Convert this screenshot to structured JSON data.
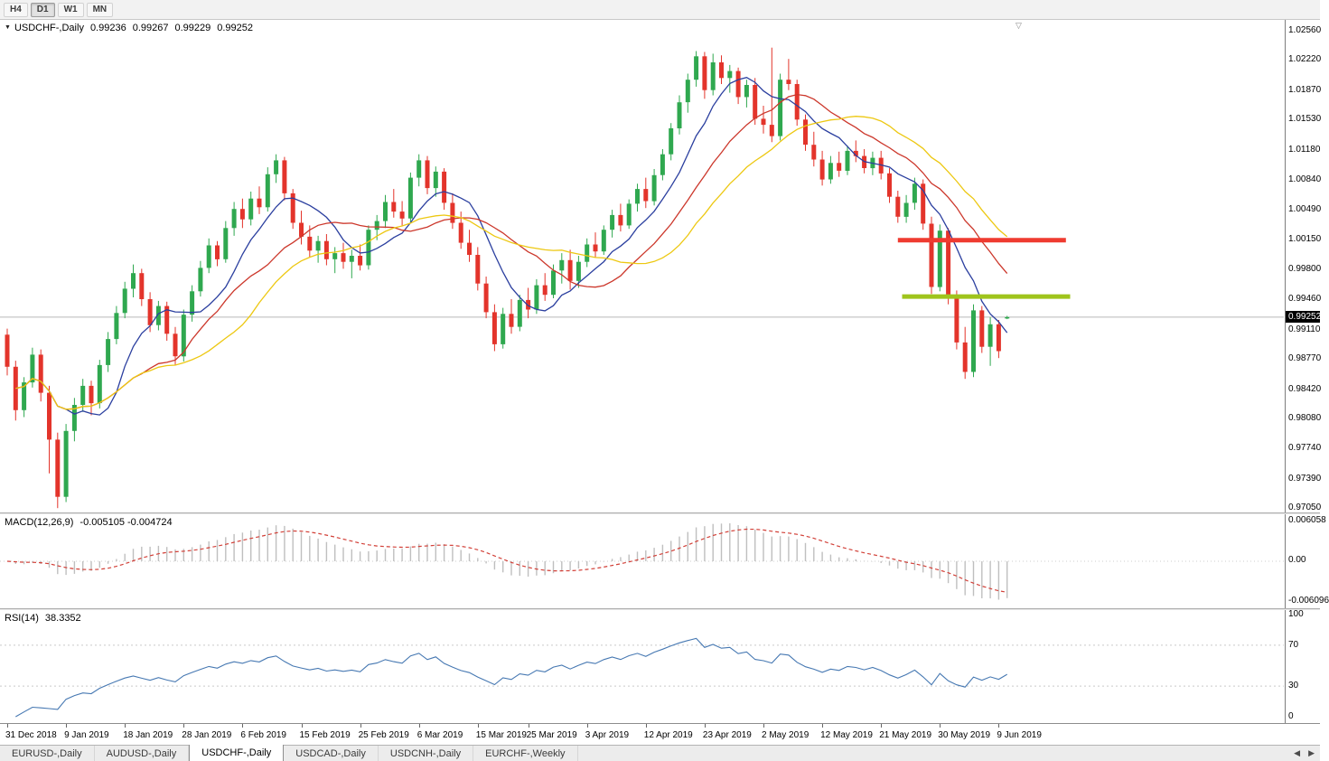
{
  "toolbar": {
    "timeframes": [
      "H4",
      "D1",
      "W1",
      "MN"
    ],
    "active": "D1"
  },
  "icons": {
    "dropdown": "▼",
    "shift_marker": "▽",
    "scroll_left": "◀",
    "scroll_right": "▶"
  },
  "colors": {
    "bull": "#2fa84f",
    "bear": "#e3342b",
    "macd_hist": "#bfbfbf",
    "macd_signal": "#d24038",
    "rsi": "#4678b2"
  },
  "chart": {
    "title": {
      "symbol": "USDCHF-,Daily",
      "open": "0.99236",
      "high": "0.99267",
      "low": "0.99229",
      "close": "0.99252"
    },
    "price_axis": {
      "ticks": [
        "1.02560",
        "1.02220",
        "1.01870",
        "1.01530",
        "1.01180",
        "1.00840",
        "1.00490",
        "1.00150",
        "0.99800",
        "0.99460",
        "0.99110",
        "0.98770",
        "0.98420",
        "0.98080",
        "0.97740",
        "0.97390",
        "0.97050"
      ],
      "current_price": "0.99252"
    }
  },
  "macd_panel": {
    "name": "MACD(12,26,9)",
    "values": "-0.005105 -0.004724",
    "axis_labels": [
      "0.006058",
      "0.00",
      "-0.006096"
    ]
  },
  "rsi_panel": {
    "name": "RSI(14)",
    "value": "38.3352",
    "axis_labels": [
      "100",
      "70",
      "30",
      "0"
    ],
    "levels": [
      70,
      30
    ]
  },
  "tabs": {
    "items": [
      {
        "label": "EURUSD-,Daily",
        "active": false
      },
      {
        "label": "AUDUSD-,Daily",
        "active": false
      },
      {
        "label": "USDCHF-,Daily",
        "active": true
      },
      {
        "label": "USDCAD-,Daily",
        "active": false
      },
      {
        "label": "USDCNH-,Daily",
        "active": false
      },
      {
        "label": "EURCHF-,Weekly",
        "active": false
      }
    ]
  },
  "chart_data": {
    "type": "candlestick",
    "symbol": "USDCHF",
    "timeframe": "Daily",
    "y_range": [
      0.97,
      1.0268
    ],
    "ohlc": [
      [
        0.9905,
        0.9912,
        0.9858,
        0.9868
      ],
      [
        0.9868,
        0.9875,
        0.9806,
        0.9818
      ],
      [
        0.9818,
        0.9856,
        0.981,
        0.985
      ],
      [
        0.985,
        0.989,
        0.9844,
        0.9882
      ],
      [
        0.9882,
        0.9888,
        0.9828,
        0.9838
      ],
      [
        0.9838,
        0.9846,
        0.9745,
        0.9784
      ],
      [
        0.9784,
        0.9792,
        0.9705,
        0.9718
      ],
      [
        0.9718,
        0.9802,
        0.9712,
        0.9794
      ],
      [
        0.9794,
        0.9832,
        0.9782,
        0.9824
      ],
      [
        0.9824,
        0.9854,
        0.9816,
        0.9846
      ],
      [
        0.9846,
        0.9852,
        0.9812,
        0.9826
      ],
      [
        0.9826,
        0.9876,
        0.982,
        0.987
      ],
      [
        0.987,
        0.9908,
        0.9862,
        0.99
      ],
      [
        0.99,
        0.9938,
        0.9894,
        0.993
      ],
      [
        0.993,
        0.9966,
        0.9924,
        0.9958
      ],
      [
        0.9958,
        0.9986,
        0.9948,
        0.9976
      ],
      [
        0.9976,
        0.9981,
        0.9938,
        0.9946
      ],
      [
        0.9946,
        0.9954,
        0.9908,
        0.9916
      ],
      [
        0.9916,
        0.9944,
        0.991,
        0.9938
      ],
      [
        0.9938,
        0.9943,
        0.9898,
        0.9906
      ],
      [
        0.9906,
        0.9914,
        0.987,
        0.988
      ],
      [
        0.988,
        0.9934,
        0.9874,
        0.9928
      ],
      [
        0.9928,
        0.9962,
        0.992,
        0.9955
      ],
      [
        0.9955,
        0.999,
        0.9949,
        0.9982
      ],
      [
        0.9982,
        1.0016,
        0.9976,
        1.0008
      ],
      [
        1.0008,
        1.0013,
        0.9984,
        0.9992
      ],
      [
        0.9992,
        1.0036,
        0.9988,
        1.0028
      ],
      [
        1.0028,
        1.0058,
        1.0019,
        1.005
      ],
      [
        1.005,
        1.0062,
        1.0028,
        1.0038
      ],
      [
        1.0038,
        1.007,
        1.0031,
        1.0062
      ],
      [
        1.0062,
        1.0076,
        1.0044,
        1.0052
      ],
      [
        1.0052,
        1.0098,
        1.0047,
        1.009
      ],
      [
        1.009,
        1.0113,
        1.008,
        1.0106
      ],
      [
        1.0106,
        1.011,
        1.006,
        1.0068
      ],
      [
        1.0068,
        1.0073,
        1.0027,
        1.0034
      ],
      [
        1.0034,
        1.0048,
        1.0009,
        1.0018
      ],
      [
        1.0018,
        1.0031,
        0.9994,
        1.0002
      ],
      [
        1.0002,
        1.0019,
        0.9988,
        1.0013
      ],
      [
        1.0013,
        1.0021,
        0.9985,
        0.9992
      ],
      [
        0.9992,
        1.0006,
        0.9976,
        0.9999
      ],
      [
        0.9999,
        1.0011,
        0.9981,
        0.9989
      ],
      [
        0.9989,
        1.0003,
        0.997,
        0.9996
      ],
      [
        0.9996,
        1.0009,
        0.9979,
        0.9985
      ],
      [
        0.9985,
        1.0031,
        0.998,
        1.0026
      ],
      [
        1.0026,
        1.0043,
        1.0014,
        1.0036
      ],
      [
        1.0036,
        1.0066,
        1.0028,
        1.0058
      ],
      [
        1.0058,
        1.0073,
        1.004,
        1.0047
      ],
      [
        1.0047,
        1.0059,
        1.0031,
        1.0039
      ],
      [
        1.0039,
        1.0092,
        1.0034,
        1.0086
      ],
      [
        1.0086,
        1.0113,
        1.0076,
        1.0106
      ],
      [
        1.0106,
        1.0111,
        1.0067,
        1.0074
      ],
      [
        1.0074,
        1.0099,
        1.0064,
        1.0093
      ],
      [
        1.0093,
        1.0097,
        1.0049,
        1.0057
      ],
      [
        1.0057,
        1.0068,
        1.0027,
        1.0034
      ],
      [
        1.0034,
        1.0047,
        1.0004,
        1.0011
      ],
      [
        1.0011,
        1.0026,
        0.9989,
        0.9997
      ],
      [
        0.9997,
        1.0006,
        0.9956,
        0.9964
      ],
      [
        0.9964,
        0.9972,
        0.9924,
        0.9931
      ],
      [
        0.9931,
        0.994,
        0.9886,
        0.9894
      ],
      [
        0.9894,
        0.9936,
        0.9889,
        0.9929
      ],
      [
        0.9929,
        0.9946,
        0.9906,
        0.9914
      ],
      [
        0.9914,
        0.9951,
        0.9909,
        0.9945
      ],
      [
        0.9945,
        0.9959,
        0.9924,
        0.9934
      ],
      [
        0.9934,
        0.9969,
        0.9929,
        0.9962
      ],
      [
        0.9962,
        0.9976,
        0.9944,
        0.9951
      ],
      [
        0.9951,
        0.9986,
        0.9947,
        0.9979
      ],
      [
        0.9979,
        0.9999,
        0.9964,
        0.9991
      ],
      [
        0.9991,
        1.0003,
        0.9957,
        0.9967
      ],
      [
        0.9967,
        0.9996,
        0.9959,
        0.9989
      ],
      [
        0.9989,
        1.0016,
        0.9983,
        1.0009
      ],
      [
        1.0009,
        1.0023,
        0.9994,
        1.0001
      ],
      [
        1.0001,
        1.0031,
        0.9997,
        1.0026
      ],
      [
        1.0026,
        1.0049,
        1.0017,
        1.0043
      ],
      [
        1.0043,
        1.0056,
        1.0024,
        1.0031
      ],
      [
        1.0031,
        1.0061,
        1.0027,
        1.0056
      ],
      [
        1.0056,
        1.0079,
        1.0047,
        1.0073
      ],
      [
        1.0073,
        1.0086,
        1.0051,
        1.0059
      ],
      [
        1.0059,
        1.0096,
        1.0054,
        1.0089
      ],
      [
        1.0089,
        1.0119,
        1.0083,
        1.0113
      ],
      [
        1.0113,
        1.0149,
        1.0106,
        1.0143
      ],
      [
        1.0143,
        1.0181,
        1.0136,
        1.0173
      ],
      [
        1.0173,
        1.0206,
        1.0161,
        1.0199
      ],
      [
        1.0199,
        1.0232,
        1.0191,
        1.0226
      ],
      [
        1.0226,
        1.0231,
        1.0177,
        1.0187
      ],
      [
        1.0187,
        1.0229,
        1.0181,
        1.0219
      ],
      [
        1.0219,
        1.0227,
        1.0194,
        1.0201
      ],
      [
        1.0201,
        1.0216,
        1.0184,
        1.0209
      ],
      [
        1.0209,
        1.0213,
        1.0171,
        1.0179
      ],
      [
        1.0179,
        1.0199,
        1.0167,
        1.0193
      ],
      [
        1.0193,
        1.0201,
        1.0147,
        1.0154
      ],
      [
        1.0154,
        1.0169,
        1.0137,
        1.0147
      ],
      [
        1.0147,
        1.0236,
        1.0127,
        1.0134
      ],
      [
        1.0134,
        1.0206,
        1.0129,
        1.0199
      ],
      [
        1.0199,
        1.0223,
        1.0187,
        1.0194
      ],
      [
        1.0194,
        1.0199,
        1.0146,
        1.0153
      ],
      [
        1.0153,
        1.0159,
        1.0117,
        1.0124
      ],
      [
        1.0124,
        1.0139,
        1.0099,
        1.0107
      ],
      [
        1.0107,
        1.0117,
        1.0077,
        1.0084
      ],
      [
        1.0084,
        1.0111,
        1.0079,
        1.0103
      ],
      [
        1.0103,
        1.0116,
        1.0087,
        1.0094
      ],
      [
        1.0094,
        1.0123,
        1.0089,
        1.0117
      ],
      [
        1.0117,
        1.0129,
        1.0104,
        1.0111
      ],
      [
        1.0111,
        1.0119,
        1.0091,
        1.0097
      ],
      [
        1.0097,
        1.0116,
        1.0089,
        1.0109
      ],
      [
        1.0109,
        1.0117,
        1.0084,
        1.0091
      ],
      [
        1.0091,
        1.0097,
        1.0057,
        1.0064
      ],
      [
        1.0064,
        1.0071,
        1.0034,
        1.0041
      ],
      [
        1.0041,
        1.0066,
        1.0034,
        1.0057
      ],
      [
        1.0057,
        1.0086,
        1.0049,
        1.0079
      ],
      [
        1.0079,
        1.0084,
        1.0026,
        1.0033
      ],
      [
        1.0033,
        1.0041,
        0.9952,
        0.996
      ],
      [
        0.996,
        1.0032,
        0.9955,
        1.0025
      ],
      [
        1.0025,
        1.0028,
        0.994,
        0.9948
      ],
      [
        0.9948,
        0.9956,
        0.9888,
        0.9896
      ],
      [
        0.9896,
        0.9914,
        0.9854,
        0.9862
      ],
      [
        0.9862,
        0.994,
        0.9856,
        0.9933
      ],
      [
        0.9933,
        0.9938,
        0.9884,
        0.9891
      ],
      [
        0.9891,
        0.9925,
        0.9869,
        0.9917
      ],
      [
        0.9917,
        0.9922,
        0.9878,
        0.9886
      ],
      [
        0.99236,
        0.99267,
        0.99229,
        0.99252
      ]
    ],
    "moving_averages": [
      {
        "name": "ma-fast-line",
        "period": 8,
        "color": "#2b3f9f"
      },
      {
        "name": "ma-mid-line",
        "period": 16,
        "color": "#cc372b"
      },
      {
        "name": "ma-slow-line",
        "period": 24,
        "color": "#edc812"
      }
    ],
    "annotations": [
      {
        "type": "hline_segment",
        "name": "resistance-line",
        "price": 1.0014,
        "from_index": 106,
        "to_index": 126,
        "color": "#ef3b30",
        "stroke_width": 5
      },
      {
        "type": "hline_segment",
        "name": "support-line",
        "price": 0.9949,
        "from_index": 106.5,
        "to_index": 126.5,
        "color": "#9fc41c",
        "stroke_width": 5
      }
    ],
    "time_axis": [
      {
        "label": "31 Dec 2018",
        "i": 0
      },
      {
        "label": "9 Jan 2019",
        "i": 7
      },
      {
        "label": "18 Jan 2019",
        "i": 14
      },
      {
        "label": "28 Jan 2019",
        "i": 21
      },
      {
        "label": "6 Feb 2019",
        "i": 28
      },
      {
        "label": "15 Feb 2019",
        "i": 35
      },
      {
        "label": "25 Feb 2019",
        "i": 42
      },
      {
        "label": "6 Mar 2019",
        "i": 49
      },
      {
        "label": "15 Mar 2019",
        "i": 56
      },
      {
        "label": "25 Mar 2019",
        "i": 62
      },
      {
        "label": "3 Apr 2019",
        "i": 69
      },
      {
        "label": "12 Apr 2019",
        "i": 76
      },
      {
        "label": "23 Apr 2019",
        "i": 83
      },
      {
        "label": "2 May 2019",
        "i": 90
      },
      {
        "label": "12 May 2019",
        "i": 97
      },
      {
        "label": "21 May 2019",
        "i": 104
      },
      {
        "label": "30 May 2019",
        "i": 111
      },
      {
        "label": "9 Jun 2019",
        "i": 118
      }
    ]
  }
}
